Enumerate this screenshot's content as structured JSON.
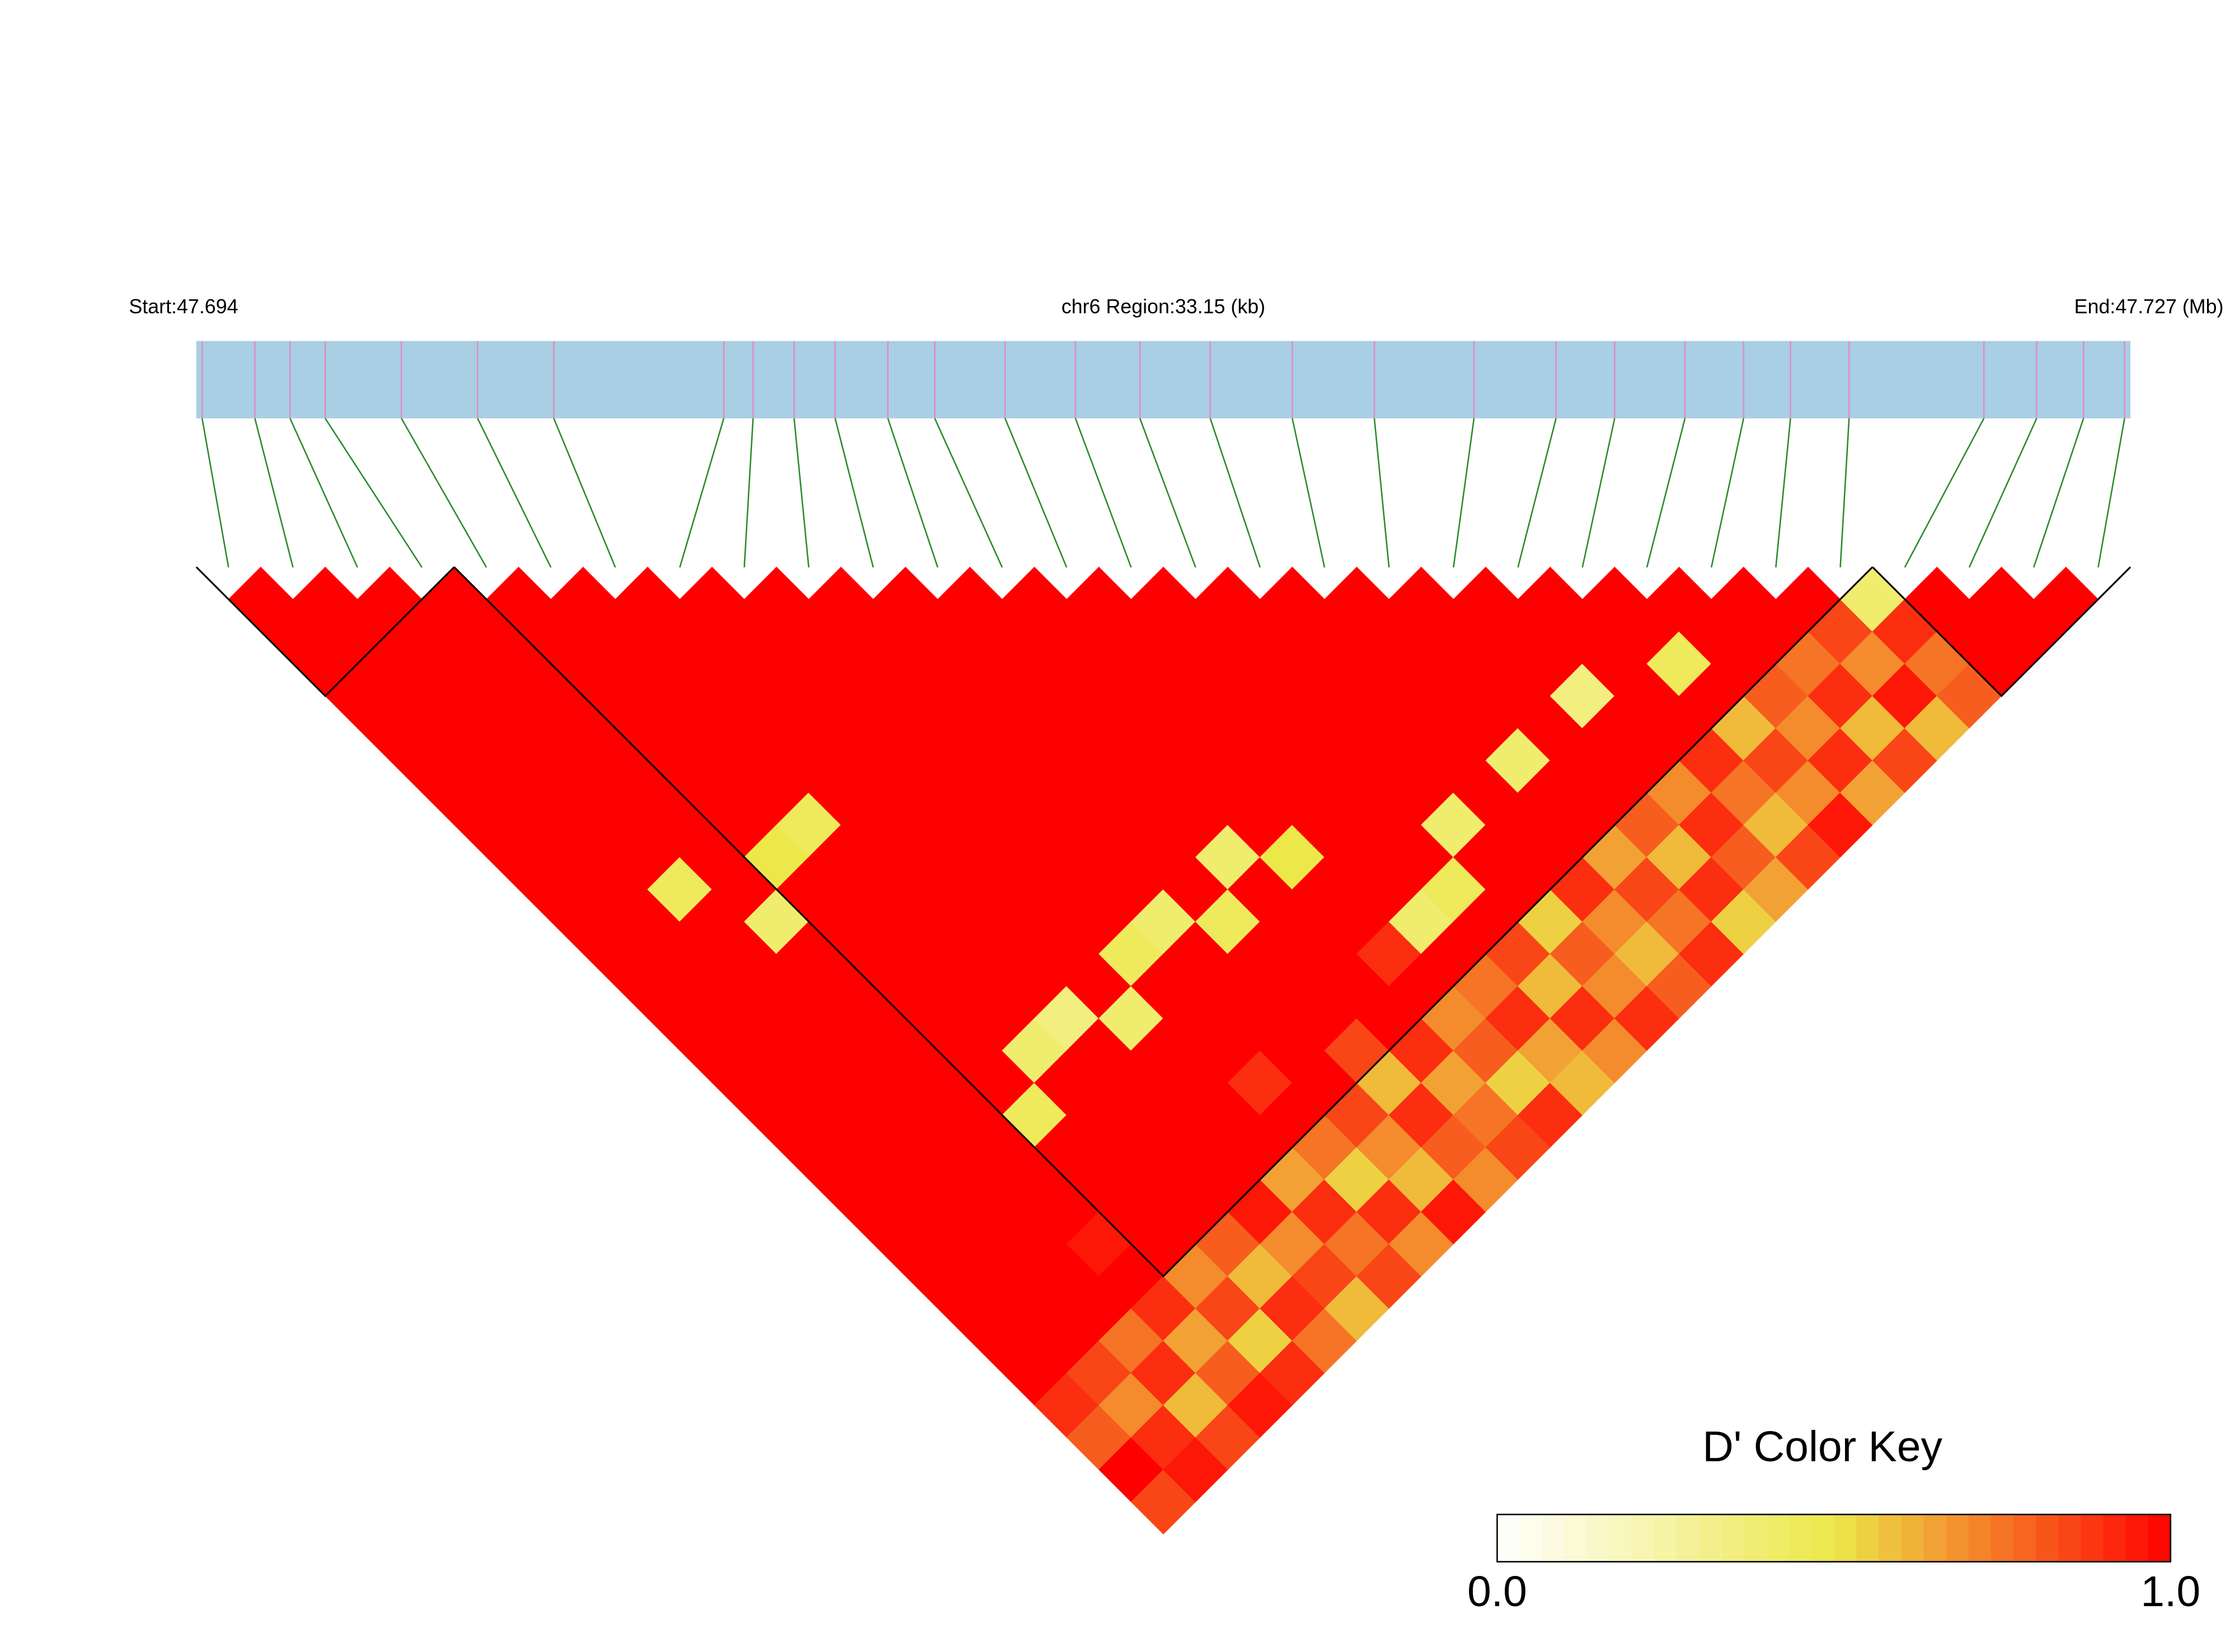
{
  "chart_data": {
    "type": "ld-heatmap",
    "start_label": "Start:47.694",
    "region_label": "chr6 Region:33.15 (kb)",
    "end_label": "End:47.727 (Mb)",
    "key_title": "D' Color Key",
    "xlim": [
      47.694,
      47.727
    ],
    "snp_positions": [
      47.6941,
      47.695,
      47.6956,
      47.6962,
      47.6975,
      47.6988,
      47.7001,
      47.703,
      47.7035,
      47.7042,
      47.7049,
      47.7058,
      47.7066,
      47.7078,
      47.709,
      47.7101,
      47.7113,
      47.7127,
      47.7141,
      47.7158,
      47.7172,
      47.7182,
      47.7194,
      47.7204,
      47.7212,
      47.7222,
      47.7245,
      47.7254,
      47.7262,
      47.7269
    ],
    "dprime": [
      [
        1,
        1,
        1,
        1,
        1,
        1,
        1,
        1,
        1,
        1,
        1,
        1,
        1,
        1,
        1,
        1,
        1,
        1,
        1,
        1,
        1,
        1,
        1,
        1,
        1,
        0.9,
        0.8,
        1,
        0.85
      ],
      [
        1,
        1,
        1,
        1,
        1,
        1,
        1,
        1,
        1,
        1,
        1,
        1,
        1,
        1,
        1,
        1,
        1,
        1,
        1,
        1,
        1,
        1,
        1,
        1,
        0.85,
        0.7,
        0.9,
        0.95
      ],
      [
        1,
        1,
        1,
        1,
        1,
        1,
        1,
        1,
        1,
        0.45,
        1,
        1,
        1,
        1,
        1,
        1,
        1,
        1,
        1,
        1,
        1,
        1,
        1,
        0.75,
        0.9,
        0.6,
        0.85
      ],
      [
        1,
        1,
        1,
        1,
        1,
        1,
        1,
        1,
        1,
        1,
        0.4,
        1,
        1,
        1,
        1,
        1,
        1,
        1,
        1,
        1,
        0.95,
        1,
        0.9,
        0.65,
        0.8,
        0.95
      ],
      [
        1,
        1,
        1,
        1,
        1,
        1,
        1,
        1,
        0.5,
        1,
        1,
        1,
        1,
        1,
        1,
        1,
        0.45,
        1,
        1,
        1,
        1,
        0.7,
        0.85,
        0.55,
        0.9
      ],
      [
        1,
        1,
        1,
        1,
        1,
        1,
        1,
        0.45,
        1,
        1,
        1,
        1,
        1,
        1,
        0.4,
        1,
        1,
        1,
        1,
        1,
        0.8,
        0.6,
        0.9,
        0.75
      ],
      [
        1,
        1,
        1,
        1,
        1,
        1,
        1,
        1,
        1,
        1,
        1,
        1,
        1,
        0.35,
        1,
        1,
        1,
        1,
        1,
        0.95,
        0.7,
        0.85,
        0.6
      ],
      [
        1,
        1,
        1,
        1,
        1,
        1,
        1,
        1,
        1,
        1,
        1,
        1,
        1,
        0.4,
        1,
        1,
        1,
        1,
        0.65,
        0.9,
        0.75,
        0.85
      ],
      [
        1,
        1,
        1,
        1,
        1,
        1,
        1,
        1,
        1,
        1,
        1,
        0.45,
        1,
        1,
        1,
        0.9,
        1,
        0.75,
        0.55,
        0.9,
        0.7
      ],
      [
        1,
        1,
        1,
        1,
        1,
        1,
        1,
        1,
        1,
        1,
        0.4,
        1,
        1,
        1,
        1,
        1,
        0.85,
        0.7,
        0.6,
        0.95
      ],
      [
        1,
        1,
        1,
        1,
        1,
        1,
        1,
        1,
        1,
        1,
        0.45,
        1,
        1,
        1,
        0.85,
        0.6,
        0.9,
        0.8,
        0.7
      ],
      [
        1,
        1,
        1,
        1,
        1,
        1,
        1,
        1,
        0.4,
        1,
        1,
        1,
        1,
        1,
        0.9,
        0.65,
        0.75,
        0.85
      ],
      [
        1,
        1,
        1,
        1,
        1,
        1,
        1,
        1,
        0.5,
        1,
        1,
        0.9,
        1,
        0.7,
        0.8,
        0.55,
        0.9
      ],
      [
        1,
        1,
        1,
        1,
        1,
        1,
        1,
        1,
        1,
        1,
        0.4,
        1,
        0.75,
        0.9,
        0.65,
        0.6
      ],
      [
        1,
        1,
        1,
        1,
        1,
        1,
        1,
        1,
        1,
        0.45,
        1,
        0.85,
        0.6,
        0.9,
        0.7
      ],
      [
        1,
        1,
        1,
        1,
        1,
        1,
        1,
        0.4,
        1,
        1,
        0.55,
        0.8,
        0.7,
        0.9
      ],
      [
        1,
        1,
        1,
        1,
        1,
        1,
        1,
        1,
        1,
        0.9,
        0.7,
        0.6,
        0.8
      ],
      [
        1,
        1,
        1,
        1,
        1,
        0.4,
        1,
        1,
        0.65,
        0.85,
        0.75,
        0.9
      ],
      [
        1,
        1,
        1,
        1,
        1,
        1,
        1,
        0.8,
        0.6,
        0.9,
        0.55
      ],
      [
        1,
        1,
        1,
        0.35,
        1,
        1,
        0.7,
        0.9,
        0.8,
        0.65
      ],
      [
        1,
        1,
        1,
        1,
        1,
        0.9,
        0.75,
        0.6,
        0.85
      ],
      [
        1,
        1,
        0.45,
        1,
        0.6,
        0.85,
        0.7,
        0.95
      ],
      [
        1,
        1,
        1,
        0.8,
        0.7,
        0.9,
        0.65
      ],
      [
        1,
        1,
        0.75,
        0.9,
        0.6,
        0.85
      ],
      [
        1,
        0.85,
        0.7,
        0.95,
        0.6
      ],
      [
        0.4,
        0.9,
        0.75,
        0.8
      ],
      [
        1,
        1,
        1
      ],
      [
        1,
        1
      ],
      [
        1
      ]
    ],
    "blocks": [
      [
        0,
        3
      ],
      [
        4,
        25
      ],
      [
        26,
        29
      ]
    ],
    "clim": [
      0,
      1
    ],
    "colorscale": [
      "#ffffff",
      "#ece84a",
      "#ff0000"
    ],
    "key_ticks": [
      {
        "value": 0,
        "label": "0.0"
      },
      {
        "value": 1,
        "label": "1.0"
      }
    ],
    "bar_color": "#a8cfe3",
    "snp_line_color": "#e08cc4",
    "connector_color": "#2a8a2a"
  }
}
